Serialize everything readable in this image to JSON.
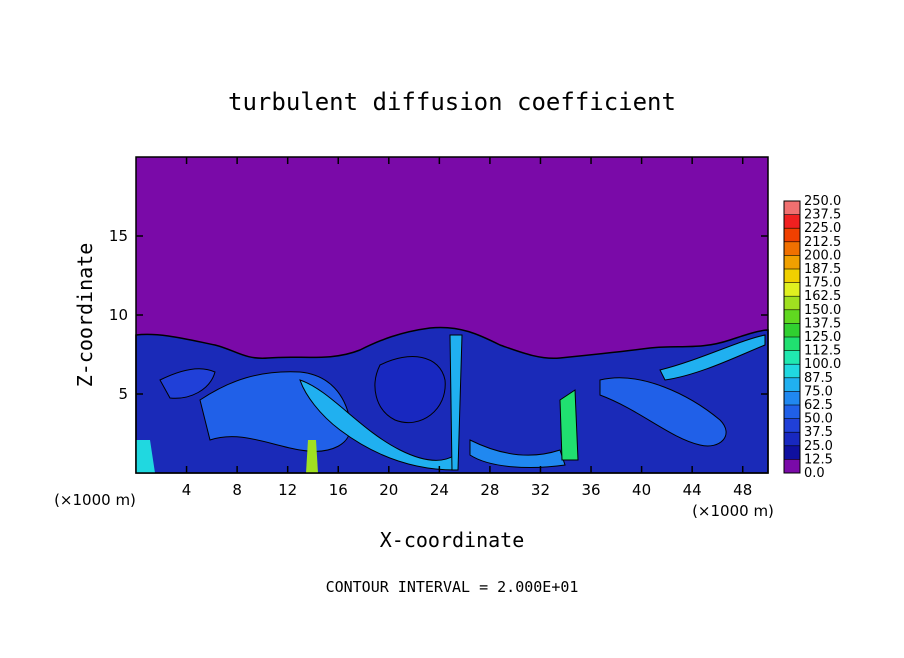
{
  "chart_data": {
    "type": "contour",
    "title": "turbulent diffusion coefficient",
    "x_label": "X-coordinate",
    "y_label": "Z-coordinate",
    "x_unit": "(×1000 m)",
    "y_unit": "(×1000 m)",
    "footer": "CONTOUR INTERVAL = 2.000E+01",
    "xlim": [
      0,
      50
    ],
    "ylim": [
      0,
      20
    ],
    "xticks": [
      4,
      8,
      12,
      16,
      20,
      24,
      28,
      32,
      36,
      40,
      44,
      48
    ],
    "yticks": [
      5,
      10,
      15
    ],
    "colorbar": {
      "levels": [
        {
          "value": 0,
          "label": "0.0"
        },
        {
          "value": 12.5,
          "label": "12.5"
        },
        {
          "value": 25,
          "label": "25.0"
        },
        {
          "value": 37.5,
          "label": "37.5"
        },
        {
          "value": 50,
          "label": "50.0"
        },
        {
          "value": 62.5,
          "label": "62.5"
        },
        {
          "value": 75,
          "label": "75.0"
        },
        {
          "value": 87.5,
          "label": "87.5"
        },
        {
          "value": 100,
          "label": "100.0"
        },
        {
          "value": 112.5,
          "label": "112.5"
        },
        {
          "value": 125,
          "label": "125.0"
        },
        {
          "value": 137.5,
          "label": "137.5"
        },
        {
          "value": 150,
          "label": "150.0"
        },
        {
          "value": 162.5,
          "label": "162.5"
        },
        {
          "value": 175,
          "label": "175.0"
        },
        {
          "value": 187.5,
          "label": "187.5"
        },
        {
          "value": 200,
          "label": "200.0"
        },
        {
          "value": 212.5,
          "label": "212.5"
        },
        {
          "value": 225,
          "label": "225.0"
        },
        {
          "value": 237.5,
          "label": "237.5"
        },
        {
          "value": 250,
          "label": "250.0"
        }
      ],
      "colors": [
        "#7a0aa8",
        "#1010a0",
        "#1828c0",
        "#2040d8",
        "#2060e8",
        "#2088f0",
        "#20b0f0",
        "#20d8e0",
        "#20e8b0",
        "#20e070",
        "#30d030",
        "#60d820",
        "#a0e020",
        "#e0f020",
        "#f0d000",
        "#f0a000",
        "#f07000",
        "#f04000",
        "#f02020",
        "#f07070"
      ]
    }
  }
}
